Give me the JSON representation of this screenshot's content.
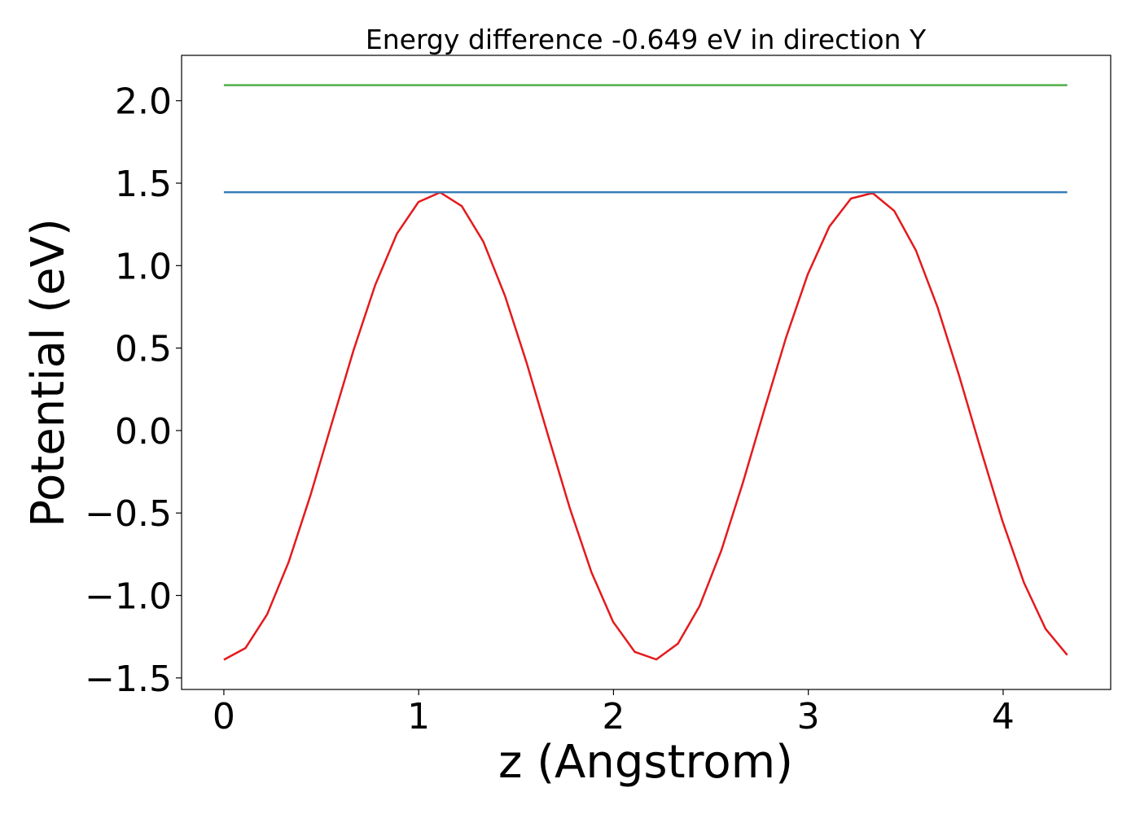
{
  "chart_data": {
    "type": "line",
    "title": "Energy difference -0.649 eV in direction Y",
    "xlabel": "z (Angstrom)",
    "ylabel": "Potential (eV)",
    "xlim": [
      -0.217,
      4.552
    ],
    "ylim": [
      -1.57,
      2.275
    ],
    "xticks": [
      0,
      1,
      2,
      3,
      4
    ],
    "yticks": [
      {
        "value": -1.5,
        "label": "−1.5"
      },
      {
        "value": -1,
        "label": "−1.0"
      },
      {
        "value": -0.5,
        "label": "−0.5"
      },
      {
        "value": 0,
        "label": "0.0"
      },
      {
        "value": 0.5,
        "label": "0.5"
      },
      {
        "value": 1,
        "label": "1.0"
      },
      {
        "value": 1.5,
        "label": "1.5"
      },
      {
        "value": 2,
        "label": "2.0"
      }
    ],
    "grid": false,
    "series": [
      {
        "color": "#e41a1c",
        "x": [
          0,
          0.111,
          0.222,
          0.333,
          0.444,
          0.555,
          0.666,
          0.777,
          0.888,
          0.999,
          1.11,
          1.221,
          1.332,
          1.443,
          1.554,
          1.665,
          1.776,
          1.887,
          1.998,
          2.109,
          2.22,
          2.331,
          2.442,
          2.553,
          2.664,
          2.775,
          2.886,
          2.997,
          3.108,
          3.219,
          3.33,
          3.441,
          3.552,
          3.663,
          3.774,
          3.885,
          3.996,
          4.107,
          4.218,
          4.329
        ],
        "values": [
          -1.39,
          -1.319,
          -1.115,
          -0.796,
          -0.395,
          0.048,
          0.488,
          0.883,
          1.193,
          1.386,
          1.444,
          1.361,
          1.145,
          0.817,
          0.411,
          -0.033,
          -0.472,
          -0.86,
          -1.16,
          -1.342,
          -1.388,
          -1.292,
          -1.064,
          -0.729,
          -0.317,
          0.129,
          0.565,
          0.947,
          1.237,
          1.407,
          1.44,
          1.332,
          1.093,
          0.749,
          0.333,
          -0.114,
          -0.547,
          -0.923,
          -1.203,
          -1.361
        ]
      },
      {
        "color": "#377eb8",
        "x": [
          0,
          4.329
        ],
        "values": [
          1.445,
          1.445
        ]
      },
      {
        "color": "#4daf4a",
        "x": [
          0,
          4.329
        ],
        "values": [
          2.094,
          2.094
        ]
      }
    ]
  }
}
